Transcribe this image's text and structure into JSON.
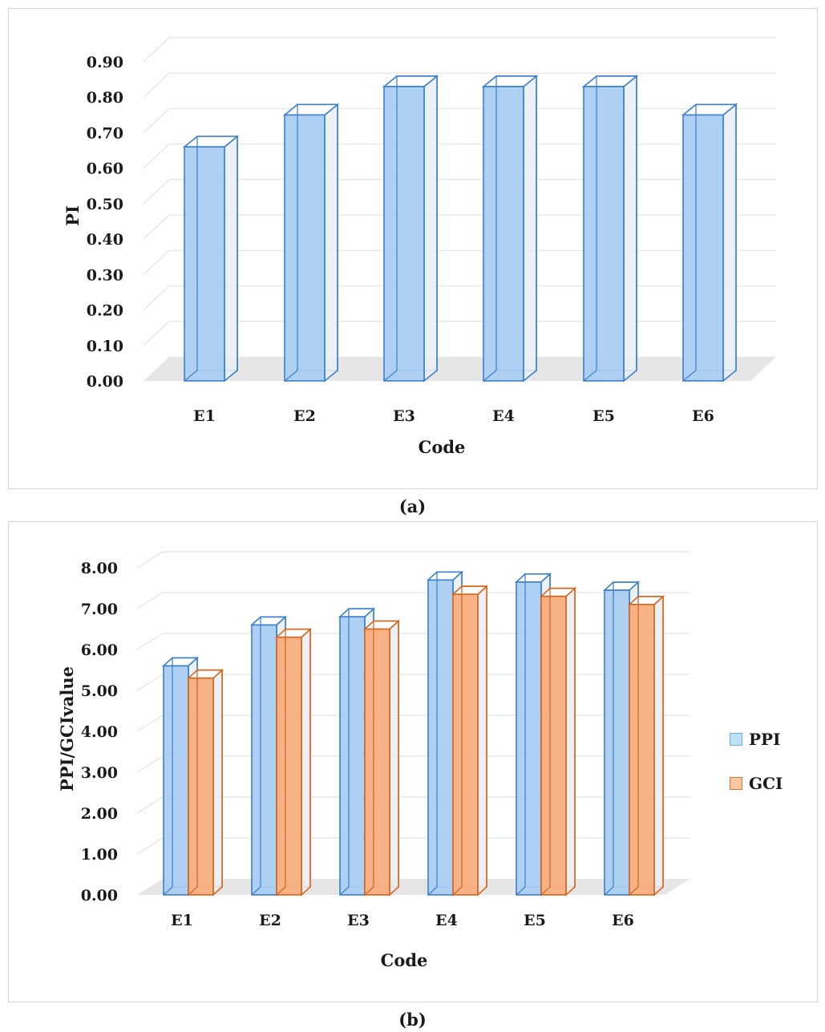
{
  "captions": {
    "a": "(a)",
    "b": "(b)"
  },
  "legend": {
    "ppi": {
      "label": "PPI",
      "color": "#bde3f9",
      "edge": "#6aaee0"
    },
    "gci": {
      "label": "GCI",
      "color": "#fbc6a1",
      "edge": "#e0772f"
    }
  },
  "colors": {
    "blue_fill": "#a9cef2",
    "blue_edge": "#3b7fd0",
    "orange_fill": "#f7ae80",
    "orange_edge": "#d9651d",
    "floor": "#e6e6e6",
    "grid": "#e4e4e4"
  },
  "chart_data": [
    {
      "type": "bar",
      "categories": [
        "E1",
        "E2",
        "E3",
        "E4",
        "E5",
        "E6"
      ],
      "series": [
        {
          "values": [
            0.66,
            0.75,
            0.83,
            0.83,
            0.83,
            0.75
          ]
        }
      ],
      "xlabel": "Code",
      "ylabel": "PI",
      "ylim": [
        0,
        0.9
      ],
      "yticks": [
        "0.00",
        "0.10",
        "0.20",
        "0.30",
        "0.40",
        "0.50",
        "0.60",
        "0.70",
        "0.80",
        "0.90"
      ],
      "grid": true,
      "style": "3d-column"
    },
    {
      "type": "bar",
      "categories": [
        "E1",
        "E2",
        "E3",
        "E4",
        "E5",
        "E6"
      ],
      "series": [
        {
          "name": "PPI",
          "values": [
            5.6,
            6.6,
            6.8,
            7.7,
            7.65,
            7.45
          ]
        },
        {
          "name": "GCI",
          "values": [
            5.3,
            6.3,
            6.5,
            7.35,
            7.3,
            7.1
          ]
        }
      ],
      "xlabel": "Code",
      "ylabel": "PPI/GCIvalue",
      "ylim": [
        0,
        8
      ],
      "yticks": [
        "0.00",
        "1.00",
        "2.00",
        "3.00",
        "4.00",
        "5.00",
        "6.00",
        "7.00",
        "8.00"
      ],
      "grid": true,
      "legend": "right",
      "style": "3d-column"
    }
  ]
}
